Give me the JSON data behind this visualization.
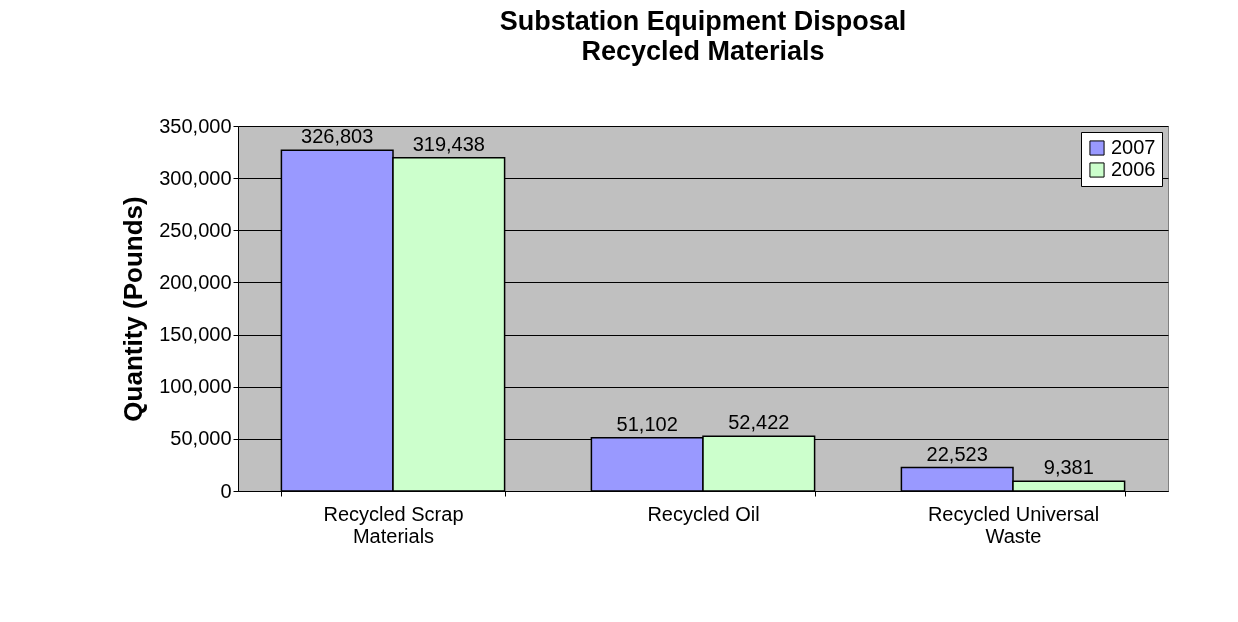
{
  "chart_data": {
    "type": "bar",
    "title": "Substation Equipment Disposal",
    "subtitle": "Recycled Materials",
    "ylabel": "Quantity (Pounds)",
    "categories": [
      "Recycled Scrap Materials",
      "Recycled Oil",
      "Recycled Universal Waste"
    ],
    "series": [
      {
        "name": "2007",
        "color": "#9999ff",
        "values": [
          326803,
          51102,
          22523
        ],
        "value_labels": [
          "326,803",
          "51,102",
          "22,523"
        ]
      },
      {
        "name": "2006",
        "color": "#ccffcc",
        "values": [
          319438,
          52422,
          9381
        ],
        "value_labels": [
          "319,438",
          "52,422",
          "9,381"
        ]
      }
    ],
    "ylim": [
      0,
      350000
    ],
    "yticks": [
      0,
      {
        "value": 50000,
        "label": "50,000"
      },
      {
        "value": 100000,
        "label": "100,000"
      },
      {
        "value": 150000,
        "label": "150,000"
      },
      {
        "value": 200000,
        "label": "200,000"
      },
      {
        "value": 250000,
        "label": "250,000"
      },
      {
        "value": 300000,
        "label": "300,000"
      },
      {
        "value": 350000,
        "label": "350,000"
      }
    ],
    "grid": "y",
    "legend": "top right"
  }
}
